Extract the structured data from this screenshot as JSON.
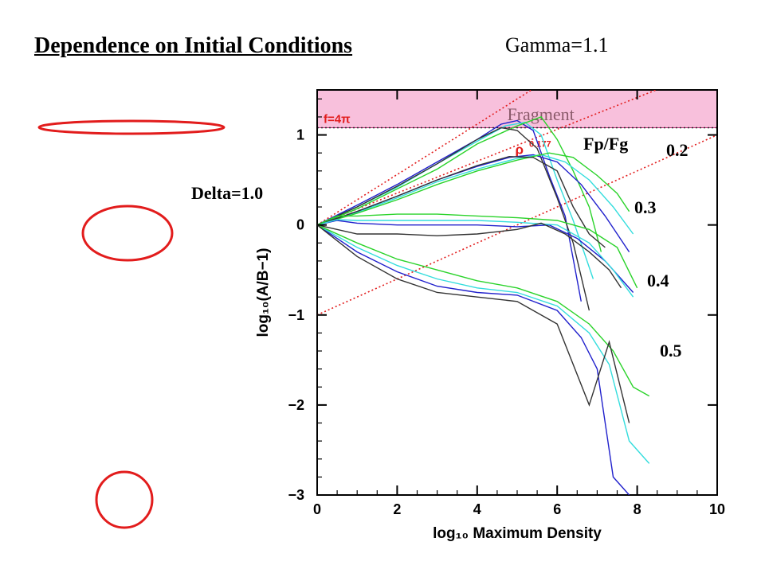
{
  "slide": {
    "title": "Dependence on Initial Conditions",
    "gamma_label": "Gamma=1.1",
    "delta_label": "Delta=1.0",
    "fpfg_label": "Fp/Fg",
    "curve_labels": [
      "0.2",
      "0.3",
      "0.4",
      "0.5"
    ]
  },
  "chart_data": {
    "type": "line",
    "xlabel": "log₁₀ Maximum Density",
    "ylabel": "log₁₀(A/B−1)",
    "xlim": [
      0,
      10
    ],
    "ylim": [
      -3,
      1.5
    ],
    "xticks": [
      0,
      2,
      4,
      6,
      8,
      10
    ],
    "yticks": [
      -3,
      -2,
      -1,
      0,
      1
    ],
    "fragment_region": {
      "label": "Fragment",
      "threshold_label": "f=4π",
      "y_min": 1.08,
      "color": "#f8c0dc"
    },
    "reference_lines": [
      {
        "label": "ρ^0.177",
        "x": [
          0,
          10
        ],
        "y": [
          0,
          1.77
        ]
      },
      {
        "label": "",
        "x": [
          0,
          10
        ],
        "y": [
          -1,
          1
        ]
      },
      {
        "label": "",
        "x": [
          0,
          10
        ],
        "y": [
          0,
          2.8
        ]
      }
    ],
    "series": [
      {
        "group": "0.2",
        "color": "#2020cc",
        "x": [
          0,
          1,
          2,
          3,
          4,
          4.6,
          5,
          5.4,
          5.8,
          6.2,
          6.6
        ],
        "y": [
          0,
          0.22,
          0.45,
          0.7,
          0.95,
          1.12,
          1.16,
          1.05,
          0.55,
          0.1,
          -0.85
        ]
      },
      {
        "group": "0.2",
        "color": "#33dddd",
        "x": [
          0,
          1,
          2,
          3,
          4,
          4.7,
          5.2,
          5.6,
          6,
          6.4,
          6.9
        ],
        "y": [
          0,
          0.2,
          0.42,
          0.68,
          0.93,
          1.1,
          1.14,
          1.0,
          0.5,
          0.05,
          -0.6
        ]
      },
      {
        "group": "0.2",
        "color": "#2ad32a",
        "x": [
          0,
          1,
          2,
          3,
          4,
          5,
          5.6,
          6,
          6.4,
          6.8,
          7.1
        ],
        "y": [
          0,
          0.18,
          0.4,
          0.62,
          0.9,
          1.1,
          1.2,
          0.95,
          0.6,
          0.2,
          -0.3
        ]
      },
      {
        "group": "0.2",
        "color": "#333333",
        "x": [
          0,
          1,
          2,
          3,
          4,
          4.6,
          5,
          5.5,
          6,
          6.4,
          6.8
        ],
        "y": [
          0,
          0.2,
          0.43,
          0.68,
          0.95,
          1.08,
          1.05,
          0.85,
          0.3,
          -0.2,
          -0.95
        ]
      },
      {
        "group": "0.3",
        "color": "#2020cc",
        "x": [
          0,
          1,
          2,
          3,
          4,
          4.8,
          5.4,
          6,
          6.6,
          7.2,
          7.8
        ],
        "y": [
          0,
          0.15,
          0.32,
          0.5,
          0.65,
          0.75,
          0.78,
          0.7,
          0.45,
          0.1,
          -0.3
        ]
      },
      {
        "group": "0.3",
        "color": "#33dddd",
        "x": [
          0,
          1,
          2,
          3,
          4,
          5,
          5.6,
          6.2,
          6.8,
          7.4,
          7.9
        ],
        "y": [
          0,
          0.14,
          0.3,
          0.48,
          0.62,
          0.74,
          0.78,
          0.7,
          0.5,
          0.2,
          -0.1
        ]
      },
      {
        "group": "0.3",
        "color": "#2ad32a",
        "x": [
          0,
          1,
          2,
          3,
          4,
          5,
          5.8,
          6.4,
          7,
          7.5,
          7.8
        ],
        "y": [
          0,
          0.13,
          0.28,
          0.45,
          0.6,
          0.72,
          0.8,
          0.75,
          0.55,
          0.35,
          0.15
        ]
      },
      {
        "group": "0.3",
        "color": "#333333",
        "x": [
          0,
          1,
          2,
          3,
          4,
          4.8,
          5.4,
          6,
          6.4,
          6.8,
          7.2
        ],
        "y": [
          0,
          0.15,
          0.32,
          0.5,
          0.66,
          0.76,
          0.75,
          0.6,
          0.2,
          -0.1,
          -0.25
        ]
      },
      {
        "group": "0.4",
        "color": "#2020cc",
        "x": [
          0,
          0.5,
          1,
          2,
          3,
          4,
          5,
          5.8,
          6.5,
          7.2,
          7.9
        ],
        "y": [
          0,
          0.05,
          0.02,
          0.0,
          0.0,
          0.0,
          -0.02,
          0.0,
          -0.15,
          -0.4,
          -0.75
        ]
      },
      {
        "group": "0.4",
        "color": "#33dddd",
        "x": [
          0,
          0.5,
          1,
          2,
          3,
          4,
          5,
          6,
          6.8,
          7.4,
          7.9
        ],
        "y": [
          0,
          0.06,
          0.05,
          0.05,
          0.05,
          0.05,
          0.03,
          0.0,
          -0.2,
          -0.5,
          -0.8
        ]
      },
      {
        "group": "0.4",
        "color": "#2ad32a",
        "x": [
          0,
          0.5,
          1,
          2,
          3,
          4,
          5,
          6,
          6.8,
          7.5,
          8
        ],
        "y": [
          0,
          0.1,
          0.1,
          0.12,
          0.12,
          0.1,
          0.08,
          0.05,
          -0.05,
          -0.25,
          -0.7
        ]
      },
      {
        "group": "0.4",
        "color": "#333333",
        "x": [
          0,
          1,
          2,
          3,
          4,
          5,
          5.6,
          6.2,
          6.8,
          7.3,
          7.6
        ],
        "y": [
          0,
          -0.1,
          -0.1,
          -0.12,
          -0.1,
          -0.05,
          0.02,
          -0.1,
          -0.3,
          -0.5,
          -0.7
        ]
      },
      {
        "group": "0.5",
        "color": "#2020cc",
        "x": [
          0,
          1,
          2,
          3,
          4,
          5,
          6,
          6.6,
          7,
          7.4,
          7.8
        ],
        "y": [
          0,
          -0.3,
          -0.52,
          -0.68,
          -0.75,
          -0.78,
          -0.95,
          -1.25,
          -1.6,
          -2.8,
          -3.0
        ]
      },
      {
        "group": "0.5",
        "color": "#33dddd",
        "x": [
          0,
          1,
          2,
          3,
          4,
          5,
          6,
          6.8,
          7.3,
          7.8,
          8.3
        ],
        "y": [
          0,
          -0.25,
          -0.45,
          -0.6,
          -0.7,
          -0.75,
          -0.9,
          -1.2,
          -1.55,
          -2.4,
          -2.65
        ]
      },
      {
        "group": "0.5",
        "color": "#2ad32a",
        "x": [
          0,
          1,
          2,
          3,
          4,
          5,
          6,
          6.8,
          7.4,
          7.9,
          8.3
        ],
        "y": [
          0,
          -0.2,
          -0.38,
          -0.5,
          -0.62,
          -0.7,
          -0.85,
          -1.1,
          -1.4,
          -1.8,
          -1.9
        ]
      },
      {
        "group": "0.5",
        "color": "#333333",
        "x": [
          0,
          1,
          2,
          3,
          4,
          5,
          6,
          6.4,
          6.8,
          7.3,
          7.8
        ],
        "y": [
          0,
          -0.35,
          -0.6,
          -0.75,
          -0.8,
          -0.85,
          -1.1,
          -1.55,
          -2.0,
          -1.3,
          -2.2
        ]
      }
    ]
  }
}
